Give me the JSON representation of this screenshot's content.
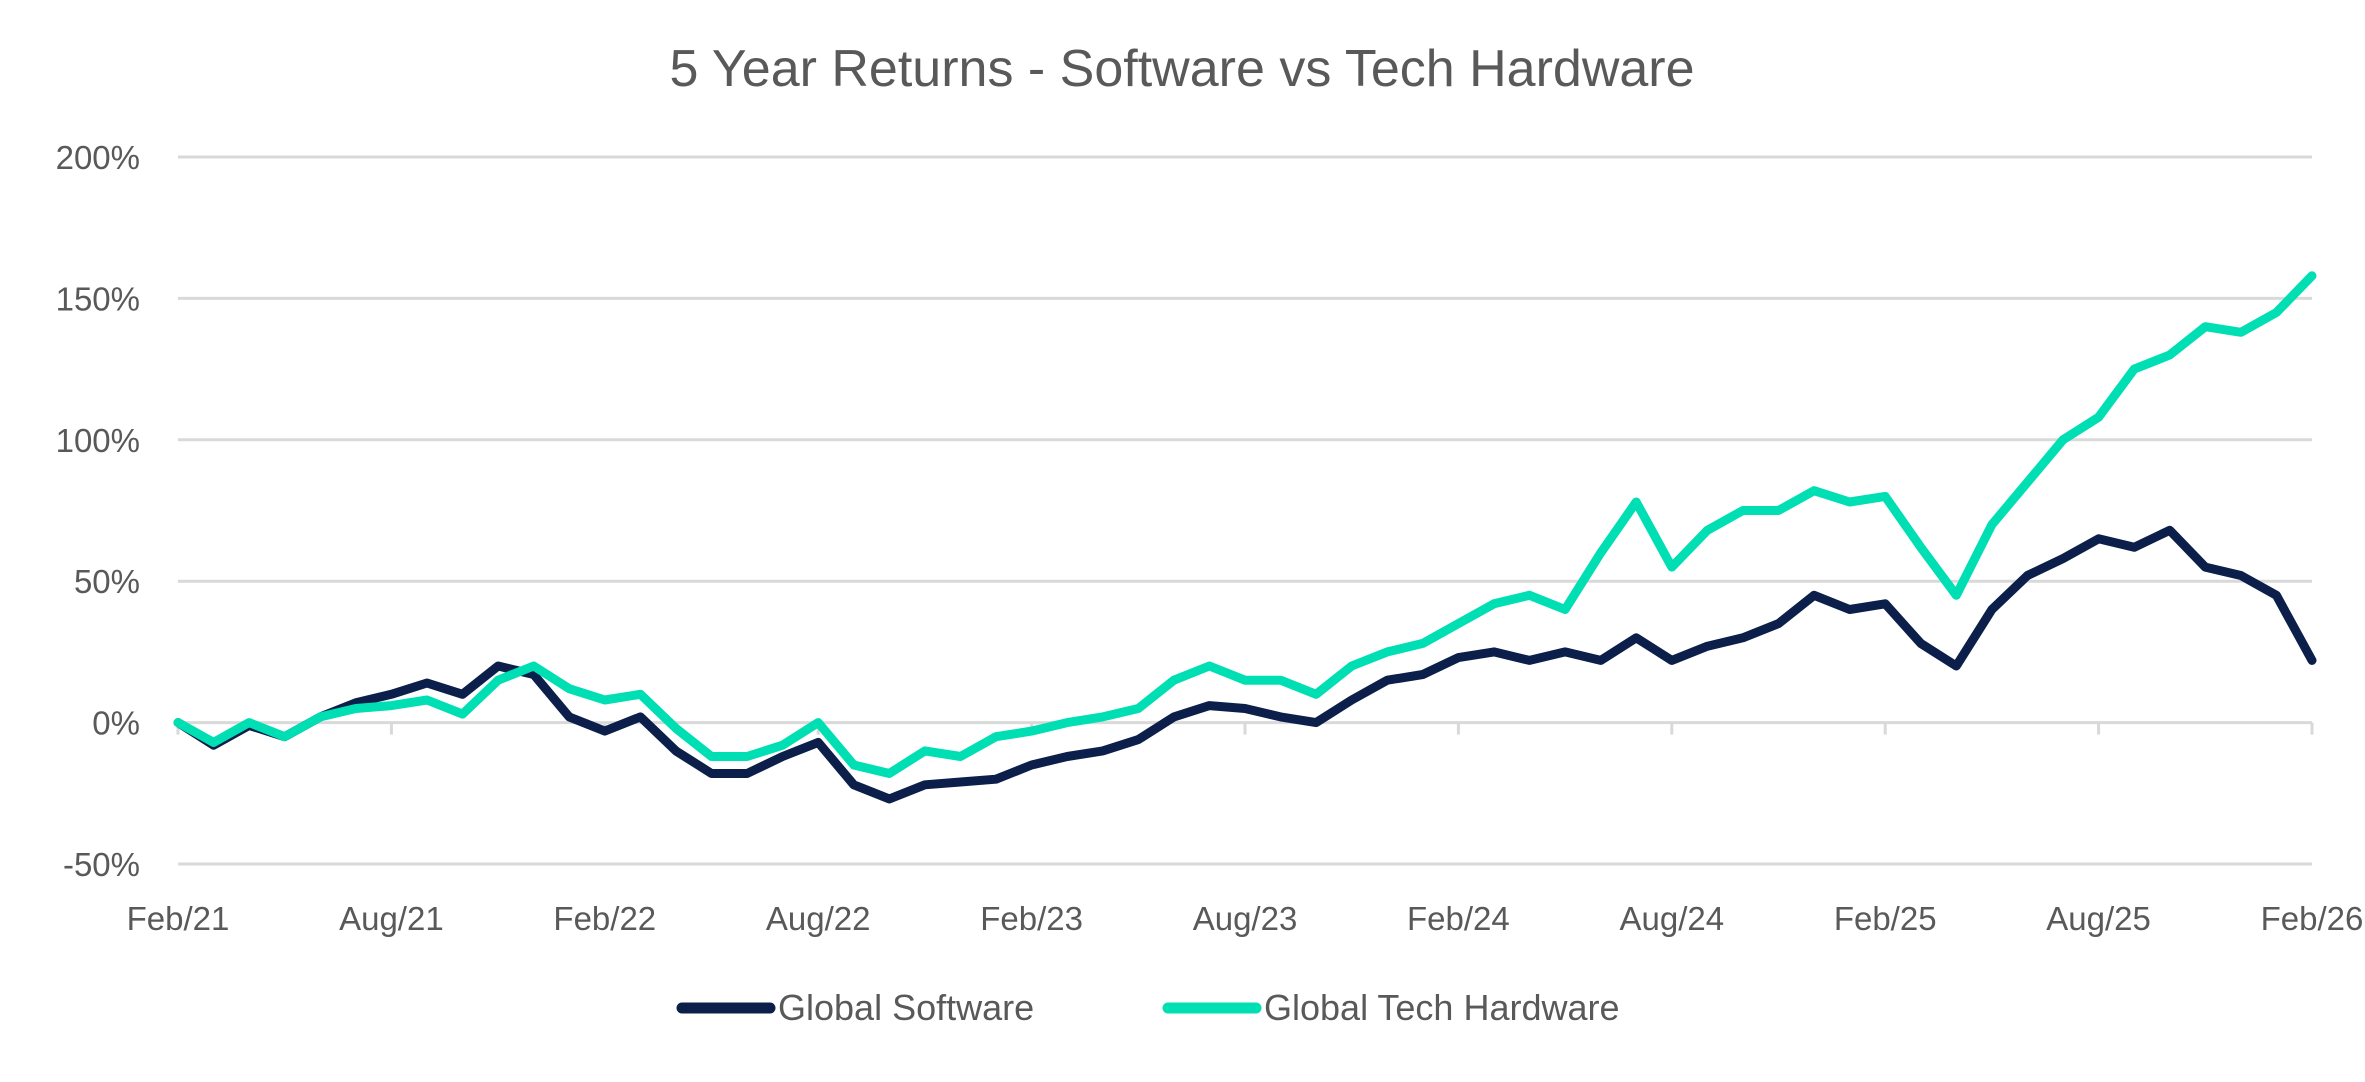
{
  "chart_data": {
    "type": "line",
    "title": "5 Year Returns - Software vs Tech Hardware",
    "xlabel": "",
    "ylabel": "",
    "ylim": [
      -50,
      200
    ],
    "yticks": [
      "-50%",
      "0%",
      "50%",
      "100%",
      "150%",
      "200%"
    ],
    "ytick_values": [
      -50,
      0,
      50,
      100,
      150,
      200
    ],
    "xticks": [
      "Feb/21",
      "Aug/21",
      "Feb/22",
      "Aug/22",
      "Feb/23",
      "Aug/23",
      "Feb/24",
      "Aug/24",
      "Feb/25",
      "Aug/25",
      "Feb/26"
    ],
    "grid": true,
    "legend": "bottom",
    "x": [
      "2021-02",
      "2021-03",
      "2021-04",
      "2021-05",
      "2021-06",
      "2021-07",
      "2021-08",
      "2021-09",
      "2021-10",
      "2021-11",
      "2021-12",
      "2022-01",
      "2022-02",
      "2022-03",
      "2022-04",
      "2022-05",
      "2022-06",
      "2022-07",
      "2022-08",
      "2022-09",
      "2022-10",
      "2022-11",
      "2022-12",
      "2023-01",
      "2023-02",
      "2023-03",
      "2023-04",
      "2023-05",
      "2023-06",
      "2023-07",
      "2023-08",
      "2023-09",
      "2023-10",
      "2023-11",
      "2023-12",
      "2024-01",
      "2024-02",
      "2024-03",
      "2024-04",
      "2024-05",
      "2024-06",
      "2024-07",
      "2024-08",
      "2024-09",
      "2024-10",
      "2024-11",
      "2024-12",
      "2025-01",
      "2025-02",
      "2025-03",
      "2025-04",
      "2025-05",
      "2025-06",
      "2025-07",
      "2025-08",
      "2025-09",
      "2025-10",
      "2025-11",
      "2025-12",
      "2026-01",
      "2026-02"
    ],
    "series": [
      {
        "name": "Global Software",
        "color": "#0b1f4a",
        "values": [
          0,
          -8,
          -1,
          -5,
          2,
          7,
          10,
          14,
          10,
          20,
          17,
          2,
          -3,
          2,
          -10,
          -18,
          -18,
          -12,
          -7,
          -22,
          -27,
          -22,
          -21,
          -20,
          -15,
          -12,
          -10,
          -6,
          2,
          6,
          5,
          2,
          0,
          8,
          15,
          17,
          23,
          25,
          22,
          25,
          22,
          30,
          22,
          27,
          30,
          35,
          45,
          40,
          42,
          28,
          20,
          40,
          52,
          58,
          65,
          62,
          68,
          55,
          52,
          45,
          22
        ]
      },
      {
        "name": "Global Tech Hardware",
        "color": "#00dfb3",
        "values": [
          0,
          -7,
          0,
          -5,
          2,
          5,
          6,
          8,
          3,
          15,
          20,
          12,
          8,
          10,
          -2,
          -12,
          -12,
          -8,
          0,
          -15,
          -18,
          -10,
          -12,
          -5,
          -3,
          0,
          2,
          5,
          15,
          20,
          15,
          15,
          10,
          20,
          25,
          28,
          35,
          42,
          45,
          40,
          60,
          78,
          55,
          68,
          75,
          75,
          82,
          78,
          80,
          62,
          45,
          70,
          85,
          100,
          108,
          125,
          130,
          140,
          138,
          145,
          158
        ]
      }
    ]
  }
}
